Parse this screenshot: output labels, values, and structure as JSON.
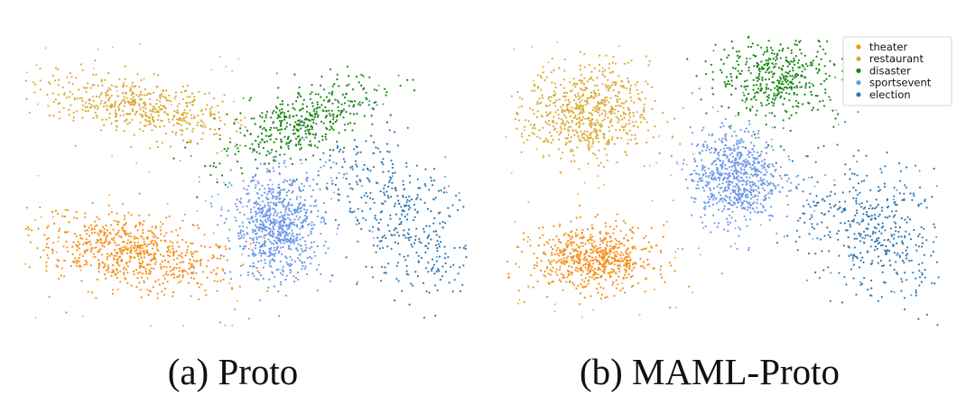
{
  "colors": {
    "theater": "#f5901a",
    "restaurant": "#dcaa32",
    "disaster": "#15870f",
    "sportsevent": "#6e98ea",
    "election": "#2f78b4"
  },
  "captions": {
    "a": "(a) Proto",
    "b": "(b) MAML-Proto"
  },
  "chart_data": [
    {
      "type": "scatter",
      "title": "(a) Proto",
      "legend": [],
      "axes": "none",
      "series": [
        {
          "name": "theater",
          "color": "#f5901a",
          "points": 700,
          "clusters": [
            {
              "cx": 0.24,
              "cy": 0.26,
              "sx": 0.12,
              "sy": 0.06,
              "tilt": -0.35
            }
          ]
        },
        {
          "name": "restaurant",
          "color": "#dcaa32",
          "points": 500,
          "clusters": [
            {
              "cx": 0.25,
              "cy": 0.76,
              "sx": 0.11,
              "sy": 0.045,
              "tilt": -0.3
            }
          ]
        },
        {
          "name": "disaster",
          "color": "#15870f",
          "points": 420,
          "clusters": [
            {
              "cx": 0.62,
              "cy": 0.7,
              "sx": 0.1,
              "sy": 0.05,
              "tilt": 0.6
            }
          ]
        },
        {
          "name": "sportsevent",
          "color": "#6e98ea",
          "points": 750,
          "clusters": [
            {
              "cx": 0.57,
              "cy": 0.35,
              "sx": 0.05,
              "sy": 0.09,
              "tilt": 0.0
            }
          ]
        },
        {
          "name": "election",
          "color": "#2f78b4",
          "points": 420,
          "clusters": [
            {
              "cx": 0.84,
              "cy": 0.4,
              "sx": 0.07,
              "sy": 0.15,
              "tilt": 0.4
            }
          ]
        }
      ]
    },
    {
      "type": "scatter",
      "title": "(b) MAML-Proto",
      "legend": [
        "theater",
        "restaurant",
        "disaster",
        "sportsevent",
        "election"
      ],
      "legend_position": "top-right",
      "axes": "none",
      "series": [
        {
          "name": "theater",
          "color": "#f5901a",
          "points": 650,
          "clusters": [
            {
              "cx": 0.2,
              "cy": 0.24,
              "sx": 0.07,
              "sy": 0.055,
              "tilt": 0.0
            }
          ]
        },
        {
          "name": "restaurant",
          "color": "#dcaa32",
          "points": 650,
          "clusters": [
            {
              "cx": 0.19,
              "cy": 0.74,
              "sx": 0.07,
              "sy": 0.08,
              "tilt": 0.0
            }
          ]
        },
        {
          "name": "disaster",
          "color": "#15870f",
          "points": 420,
          "clusters": [
            {
              "cx": 0.63,
              "cy": 0.86,
              "sx": 0.07,
              "sy": 0.07,
              "tilt": 0.0
            }
          ]
        },
        {
          "name": "sportsevent",
          "color": "#6e98ea",
          "points": 700,
          "clusters": [
            {
              "cx": 0.53,
              "cy": 0.52,
              "sx": 0.05,
              "sy": 0.08,
              "tilt": 0.0
            }
          ]
        },
        {
          "name": "election",
          "color": "#2f78b4",
          "points": 450,
          "clusters": [
            {
              "cx": 0.85,
              "cy": 0.34,
              "sx": 0.08,
              "sy": 0.13,
              "tilt": 0.5
            }
          ]
        }
      ]
    }
  ]
}
